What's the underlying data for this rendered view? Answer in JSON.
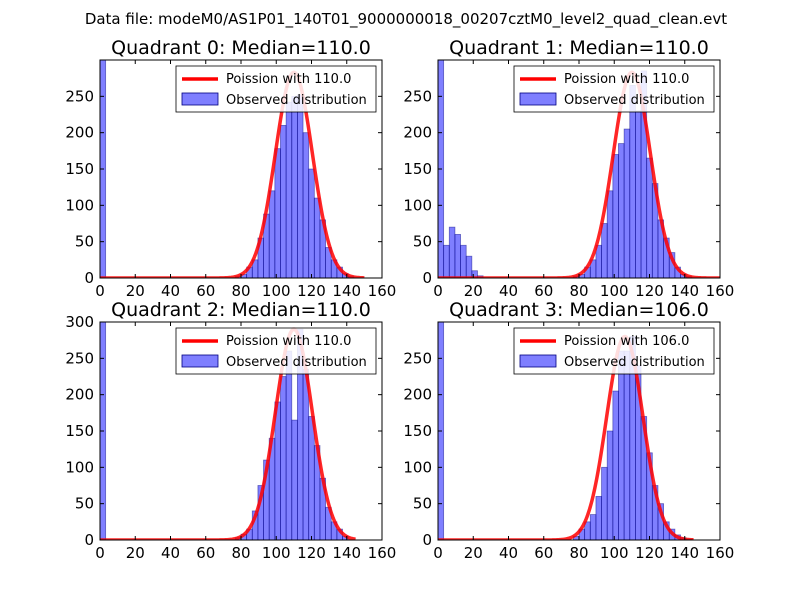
{
  "figure": {
    "suptitle": "Data file: modeM0/AS1P01_140T01_9000000018_00207cztM0_level2_quad_clean.evt"
  },
  "chart_data": [
    {
      "type": "bar+line",
      "title": "Quadrant 0: Median=110.0",
      "xlim": [
        0,
        160
      ],
      "ylim": [
        0,
        300
      ],
      "xticks": [
        0,
        20,
        40,
        60,
        80,
        100,
        120,
        140,
        160
      ],
      "yticks": [
        0,
        50,
        100,
        150,
        200,
        250
      ],
      "bin_width": 3.2,
      "hist_x": [
        0,
        76.8,
        80,
        83.2,
        86.4,
        89.6,
        92.8,
        96,
        99.2,
        102.4,
        105.6,
        108.8,
        112,
        115.2,
        118.4,
        121.6,
        124.8,
        128,
        131.2,
        134.4,
        137.6,
        140.8
      ],
      "hist_y": [
        300,
        2,
        5,
        15,
        25,
        55,
        88,
        120,
        178,
        210,
        242,
        250,
        252,
        200,
        150,
        110,
        80,
        42,
        25,
        15,
        6,
        2
      ],
      "line_mean": 110.0,
      "line_peak": 283,
      "line_xmin": 0,
      "line_xmax": 150,
      "legend": {
        "line": "Poission with 110.0",
        "bars": "Observed distribution"
      }
    },
    {
      "type": "bar+line",
      "title": "Quadrant 1: Median=110.0",
      "xlim": [
        0,
        160
      ],
      "ylim": [
        0,
        300
      ],
      "xticks": [
        0,
        20,
        40,
        60,
        80,
        100,
        120,
        140,
        160
      ],
      "yticks": [
        0,
        50,
        100,
        150,
        200,
        250
      ],
      "bin_width": 3.2,
      "hist_x": [
        0,
        3.2,
        6.4,
        9.6,
        12.8,
        16,
        19.2,
        22.4,
        76.8,
        80,
        83.2,
        86.4,
        89.6,
        92.8,
        96,
        99.2,
        102.4,
        105.6,
        108.8,
        112,
        115.2,
        118.4,
        121.6,
        124.8,
        128,
        131.2,
        134.4,
        137.6,
        140.8
      ],
      "hist_y": [
        300,
        45,
        70,
        60,
        45,
        30,
        10,
        3,
        2,
        5,
        15,
        25,
        45,
        75,
        120,
        170,
        185,
        205,
        265,
        230,
        285,
        165,
        130,
        80,
        55,
        35,
        15,
        5,
        2
      ],
      "line_mean": 110.0,
      "line_peak": 283,
      "line_xmin": 0,
      "line_xmax": 160,
      "legend": {
        "line": "Poission with 110.0",
        "bars": "Observed distribution"
      }
    },
    {
      "type": "bar+line",
      "title": "Quadrant 2: Median=110.0",
      "xlim": [
        0,
        160
      ],
      "ylim": [
        0,
        300
      ],
      "xticks": [
        0,
        20,
        40,
        60,
        80,
        100,
        120,
        140,
        160
      ],
      "yticks": [
        0,
        50,
        100,
        150,
        200,
        250,
        300
      ],
      "bin_width": 3.2,
      "hist_x": [
        0,
        76.8,
        80,
        83.2,
        86.4,
        89.6,
        92.8,
        96,
        99.2,
        102.4,
        105.6,
        108.8,
        112,
        115.2,
        118.4,
        121.6,
        124.8,
        128,
        131.2,
        134.4,
        137.6
      ],
      "hist_y": [
        300,
        3,
        8,
        15,
        40,
        75,
        110,
        140,
        190,
        225,
        260,
        165,
        290,
        235,
        170,
        130,
        85,
        45,
        25,
        15,
        5
      ],
      "line_mean": 110.0,
      "line_peak": 290,
      "line_xmin": 0,
      "line_xmax": 145,
      "legend": {
        "line": "Poission with 110.0",
        "bars": "Observed distribution"
      }
    },
    {
      "type": "bar+line",
      "title": "Quadrant 3: Median=106.0",
      "xlim": [
        0,
        160
      ],
      "ylim": [
        0,
        300
      ],
      "xticks": [
        0,
        20,
        40,
        60,
        80,
        100,
        120,
        140,
        160
      ],
      "yticks": [
        0,
        50,
        100,
        150,
        200,
        250
      ],
      "bin_width": 3.2,
      "hist_x": [
        0,
        76.8,
        80,
        83.2,
        86.4,
        89.6,
        92.8,
        96,
        99.2,
        102.4,
        105.6,
        108.8,
        112,
        115.2,
        118.4,
        121.6,
        124.8,
        128,
        131.2,
        134.4,
        137.6,
        140.8
      ],
      "hist_y": [
        300,
        5,
        15,
        25,
        35,
        60,
        100,
        150,
        205,
        260,
        260,
        280,
        240,
        170,
        120,
        75,
        50,
        25,
        15,
        7,
        3,
        1
      ],
      "line_mean": 106.0,
      "line_peak": 280,
      "line_xmin": 0,
      "line_xmax": 145,
      "legend": {
        "line": "Poission with 106.0",
        "bars": "Observed distribution"
      }
    }
  ]
}
